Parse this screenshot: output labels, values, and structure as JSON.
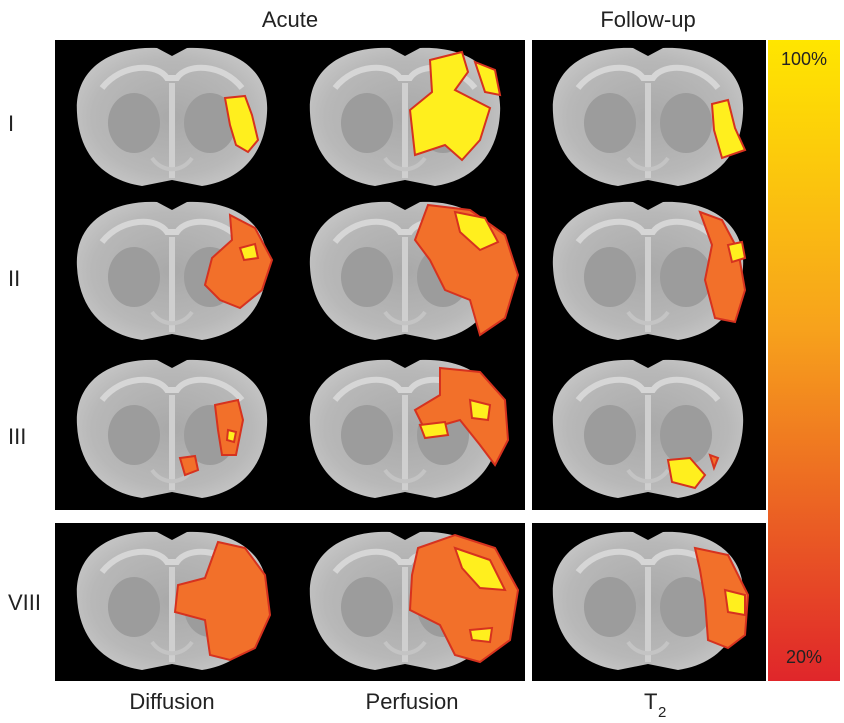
{
  "header": {
    "groups": [
      "Acute",
      "Follow-up"
    ]
  },
  "rows": [
    "I",
    "II",
    "III",
    "VIII"
  ],
  "footer": {
    "columns": [
      {
        "text": "Diffusion"
      },
      {
        "text": "Perfusion"
      },
      {
        "text": "T",
        "subscript": "2"
      }
    ]
  },
  "colorbar": {
    "top_label": "100%",
    "bottom_label": "20%"
  }
}
